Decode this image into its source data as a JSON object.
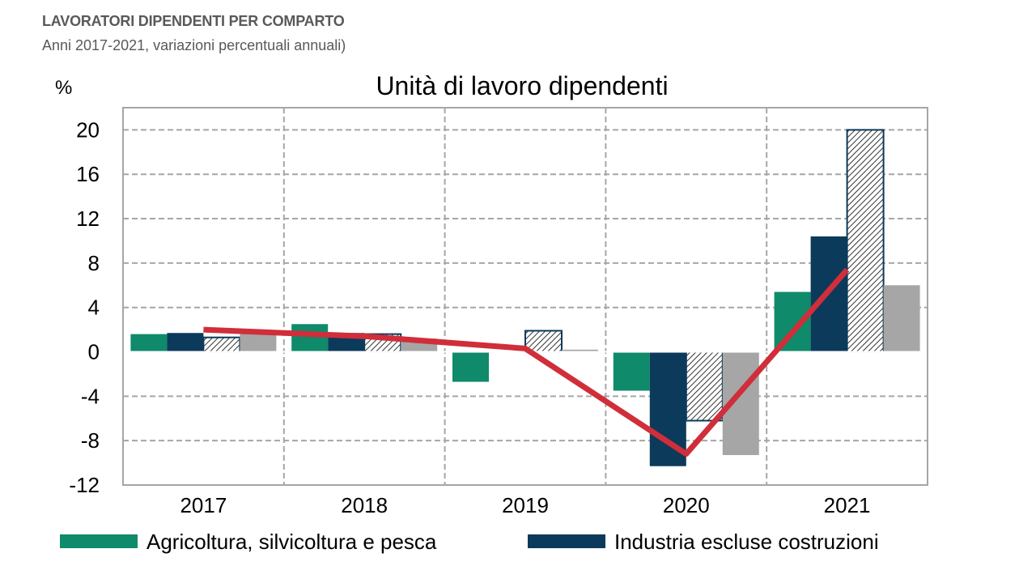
{
  "header": {
    "title": "LAVORATORI DIPENDENTI PER COMPARTO",
    "subtitle": "Anni 2017-2021, variazioni percentuali annuali)"
  },
  "chart_data": {
    "type": "bar",
    "title": "Unità di lavoro dipendenti",
    "ylabel": "%",
    "xlabel": "",
    "categories": [
      "2017",
      "2018",
      "2019",
      "2020",
      "2021"
    ],
    "ylim": [
      -12,
      22
    ],
    "yticks": [
      20,
      16,
      12,
      8,
      4,
      0,
      -4,
      -8,
      -12
    ],
    "grid": true,
    "legend_position": "bottom",
    "series": [
      {
        "name": "Agricoltura, silvicoltura e pesca",
        "kind": "bar",
        "color": "#0f8a6a",
        "pattern": "solid",
        "values": [
          1.6,
          2.5,
          -2.7,
          -3.5,
          5.4
        ]
      },
      {
        "name": "Industria escluse costruzioni",
        "kind": "bar",
        "color": "#0c3a5b",
        "pattern": "solid",
        "values": [
          1.7,
          1.7,
          0.0,
          -10.3,
          10.4
        ]
      },
      {
        "name": "",
        "kind": "bar",
        "color": "#ffffff",
        "pattern": "hatch",
        "values": [
          1.3,
          1.6,
          1.9,
          -6.2,
          20.0
        ]
      },
      {
        "name": "",
        "kind": "bar",
        "color": "#a6a6a6",
        "pattern": "solid",
        "values": [
          1.9,
          1.2,
          0.2,
          -9.3,
          6.0
        ]
      },
      {
        "name": "",
        "kind": "line",
        "color": "#d02e3a",
        "values": [
          2.0,
          1.4,
          0.3,
          -9.2,
          7.4
        ]
      }
    ]
  }
}
